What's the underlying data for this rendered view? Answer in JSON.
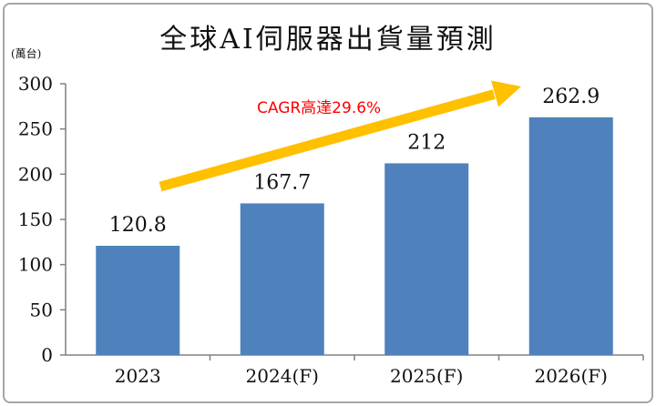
{
  "chart_data": {
    "type": "bar",
    "title": "全球AI伺服器出貨量預測",
    "unit_label": "(萬台)",
    "categories": [
      "2023",
      "2024(F)",
      "2025(F)",
      "2026(F)"
    ],
    "values": [
      120.8,
      167.7,
      212,
      262.9
    ],
    "data_labels": [
      "120.8",
      "167.7",
      "212",
      "262.9"
    ],
    "yticks": [
      "0",
      "50",
      "100",
      "150",
      "200",
      "250",
      "300"
    ],
    "ylim": [
      0,
      300
    ],
    "grid": false,
    "bar_color": "#4f81bd",
    "annotation": {
      "text": "CAGR高達29.6%",
      "color": "#ff0000",
      "arrow_color": "#ffc000"
    }
  }
}
